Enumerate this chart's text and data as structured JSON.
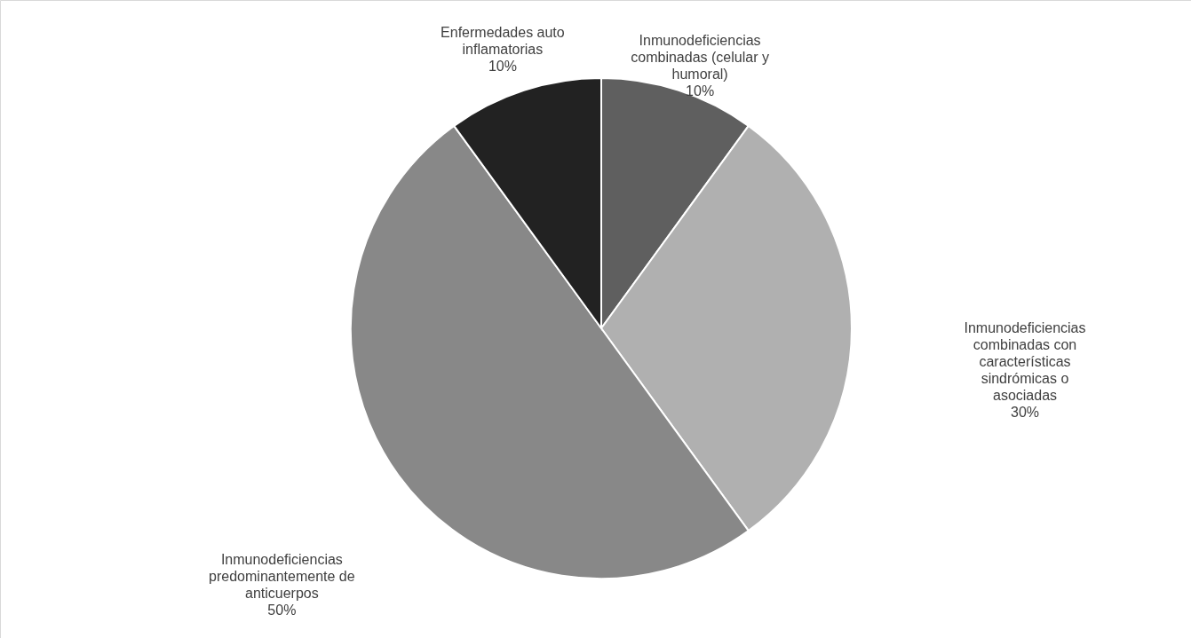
{
  "chart_data": {
    "type": "pie",
    "categories": [
      "Inmunodeficiencias combinadas (celular y humoral)",
      "Inmunodeficiencias combinadas con características sindrómicas o asociadas",
      "Inmunodeficiencias predominantemente de anticuerpos",
      "Enfermedades auto inflamatorias"
    ],
    "values": [
      10,
      30,
      50,
      10
    ],
    "value_labels": [
      "10%",
      "30%",
      "50%",
      "10%"
    ],
    "colors": [
      "#5f5f5f",
      "#b0b0b0",
      "#888888",
      "#222222"
    ]
  }
}
